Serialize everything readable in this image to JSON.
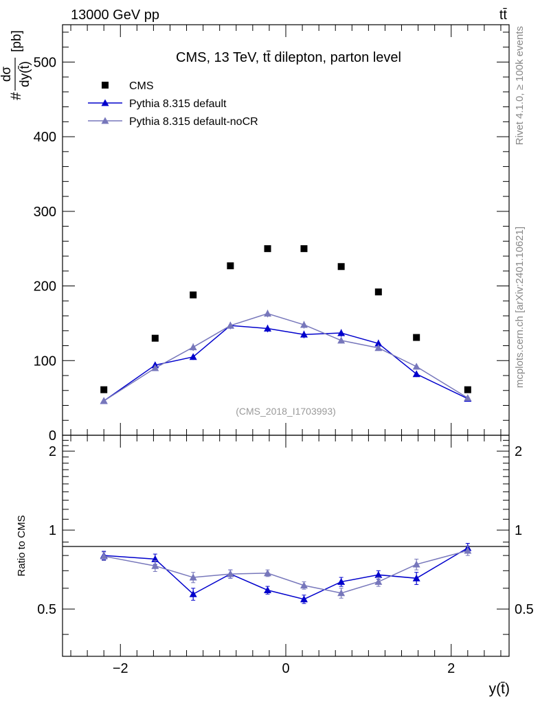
{
  "header": {
    "beam_label": "13000 GeV pp",
    "process_label": "tt̄"
  },
  "side_labels": {
    "rivet": "Rivet 4.1.0, ≥ 100k events",
    "site": "mcplots.cern.ch [arXiv:2401.10621]"
  },
  "chart_data": {
    "type": "scatter",
    "title": "CMS, 13 TeV, tt̄ dilepton, parton level",
    "analysis_tag": "(CMS_2018_I1703993)",
    "xlabel": "y(t̄)",
    "ylabel_top": "#dσ/dy(t̄) [pb]",
    "ylabel_top_parts": {
      "prefix": "#",
      "numerator": "dσ",
      "denominator": "dy(t̄)",
      "unit": "[pb]"
    },
    "ylabel_ratio": "Ratio to CMS",
    "xlim": [
      -2.7,
      2.7
    ],
    "ylim_main": [
      0,
      550
    ],
    "ylim_ratio": [
      0.33,
      2.3
    ],
    "x_ticks": [
      -2,
      0,
      2
    ],
    "x_tick_labels": [
      "−2",
      "0",
      "2"
    ],
    "y_ticks_main": [
      0,
      100,
      200,
      300,
      400,
      500
    ],
    "y_tick_labels_main": [
      "0",
      "100",
      "200",
      "300",
      "400",
      "500"
    ],
    "y_ticks_ratio": [
      0.5,
      1,
      2
    ],
    "y_tick_labels_ratio": [
      "0.5",
      "1",
      "2"
    ],
    "x": [
      -2.2,
      -1.58,
      -1.12,
      -0.67,
      -0.22,
      0.22,
      0.67,
      1.12,
      1.58,
      2.2
    ],
    "series": [
      {
        "name": "CMS",
        "marker": "square",
        "color": "#000000",
        "values": [
          61,
          130,
          188,
          227,
          250,
          250,
          226,
          192,
          131,
          61
        ]
      },
      {
        "name": "Pythia 8.315 default",
        "marker": "triangle",
        "color": "#0000cc",
        "values": [
          46,
          94,
          105,
          147,
          143,
          135,
          137,
          123,
          82,
          49
        ],
        "errors": [
          2,
          4,
          4,
          4,
          5,
          5,
          5,
          5,
          4,
          2
        ],
        "ratio": [
          0.8,
          0.775,
          0.57,
          0.68,
          0.59,
          0.545,
          0.635,
          0.675,
          0.655,
          0.855
        ],
        "ratio_errors": [
          0.03,
          0.035,
          0.03,
          0.025,
          0.02,
          0.02,
          0.025,
          0.025,
          0.035,
          0.035
        ]
      },
      {
        "name": "Pythia 8.315 default-noCR",
        "marker": "triangle",
        "color": "#7777bb",
        "values": [
          46,
          90,
          118,
          147,
          163,
          148,
          127,
          117,
          92,
          50
        ],
        "errors": [
          2,
          4,
          5,
          5,
          5,
          5,
          4,
          4,
          4,
          2
        ],
        "ratio": [
          0.795,
          0.73,
          0.66,
          0.68,
          0.685,
          0.615,
          0.575,
          0.635,
          0.74,
          0.835
        ],
        "ratio_errors": [
          0.03,
          0.035,
          0.03,
          0.025,
          0.02,
          0.02,
          0.025,
          0.025,
          0.035,
          0.035
        ]
      }
    ],
    "legend_position": "top-left"
  }
}
